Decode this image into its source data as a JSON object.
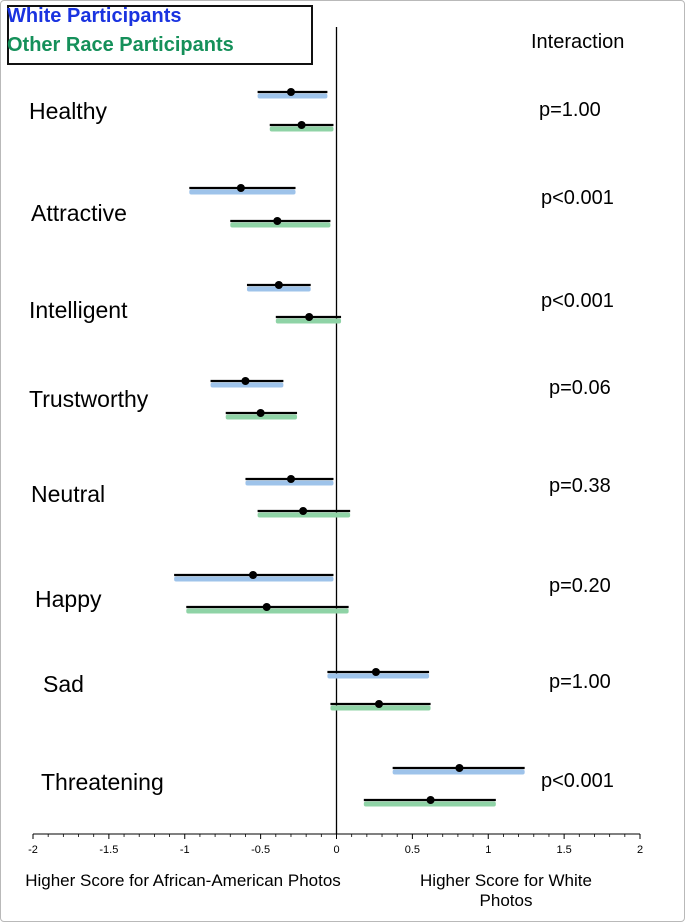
{
  "legend": {
    "white": "White Participants",
    "other": "Other Race Participants",
    "white_color": "#1a33e0",
    "other_color": "#15905a"
  },
  "interaction_header": "Interaction",
  "colors": {
    "white_shadow": "#9ec3ea",
    "other_shadow": "#8fd3a6",
    "bar": "#000000"
  },
  "chart_data": {
    "type": "forest",
    "title": "",
    "xlim": [
      -2,
      2
    ],
    "xticks": [
      "-2",
      "-1.5",
      "-1",
      "-0.5",
      "0",
      "0.5",
      "1",
      "1.5",
      "2"
    ],
    "xlabel_left": "Higher Score for African-American Photos",
    "xlabel_right": "Higher Score for White Photos",
    "series": [
      "White Participants",
      "Other Race Participants"
    ],
    "categories": [
      {
        "label": "Healthy",
        "p": "p=1.00",
        "white": {
          "mean": -0.3,
          "lo": -0.52,
          "hi": -0.06
        },
        "other": {
          "mean": -0.23,
          "lo": -0.44,
          "hi": -0.02
        }
      },
      {
        "label": "Attractive",
        "p": "p<0.001",
        "white": {
          "mean": -0.63,
          "lo": -0.97,
          "hi": -0.27
        },
        "other": {
          "mean": -0.39,
          "lo": -0.7,
          "hi": -0.04
        }
      },
      {
        "label": "Intelligent",
        "p": "p<0.001",
        "white": {
          "mean": -0.38,
          "lo": -0.59,
          "hi": -0.17
        },
        "other": {
          "mean": -0.18,
          "lo": -0.4,
          "hi": 0.03
        }
      },
      {
        "label": "Trustworthy",
        "p": "p=0.06",
        "white": {
          "mean": -0.6,
          "lo": -0.83,
          "hi": -0.35
        },
        "other": {
          "mean": -0.5,
          "lo": -0.73,
          "hi": -0.26
        }
      },
      {
        "label": "Neutral",
        "p": "p=0.38",
        "white": {
          "mean": -0.3,
          "lo": -0.6,
          "hi": -0.02
        },
        "other": {
          "mean": -0.22,
          "lo": -0.52,
          "hi": 0.09
        }
      },
      {
        "label": "Happy",
        "p": "p=0.20",
        "white": {
          "mean": -0.55,
          "lo": -1.07,
          "hi": -0.02
        },
        "other": {
          "mean": -0.46,
          "lo": -0.99,
          "hi": 0.08
        }
      },
      {
        "label": "Sad",
        "p": "p=1.00",
        "white": {
          "mean": 0.26,
          "lo": -0.06,
          "hi": 0.61
        },
        "other": {
          "mean": 0.28,
          "lo": -0.04,
          "hi": 0.62
        }
      },
      {
        "label": "Threatening",
        "p": "p<0.001",
        "white": {
          "mean": 0.81,
          "lo": 0.37,
          "hi": 1.24
        },
        "other": {
          "mean": 0.62,
          "lo": 0.18,
          "hi": 1.05
        }
      }
    ]
  }
}
